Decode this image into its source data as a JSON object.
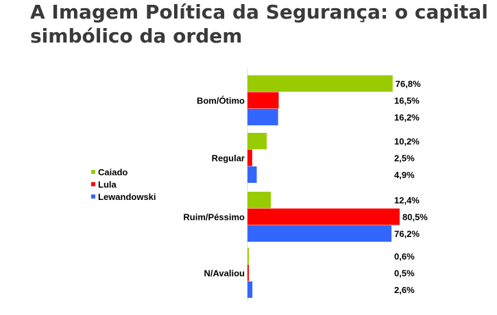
{
  "slide": {
    "title_line1": "A Imagem Política da Segurança: o capital",
    "title_line2": "simbólico da ordem"
  },
  "chart_data": {
    "type": "bar",
    "orientation": "horizontal",
    "categories": [
      "Bom/Ótimo",
      "Regular",
      "Ruim/Péssimo",
      "N/Avaliou"
    ],
    "series": [
      {
        "name": "Caiado",
        "color": "#99cc00",
        "values": [
          76.8,
          10.2,
          12.4,
          0.6
        ],
        "labels": [
          "76,8%",
          "10,2%",
          "12,4%",
          "0,6%"
        ]
      },
      {
        "name": "Lula",
        "color": "#ff0000",
        "values": [
          16.5,
          2.5,
          80.5,
          0.5
        ],
        "labels": [
          "16,5%",
          "2,5%",
          "80,5%",
          "0,5%"
        ]
      },
      {
        "name": "Lewandowski",
        "color": "#3366ff",
        "values": [
          16.2,
          4.9,
          76.2,
          2.6
        ],
        "labels": [
          "16,2%",
          "4,9%",
          "76,2%",
          "2,6%"
        ]
      }
    ],
    "xlim": [
      0,
      80.5
    ],
    "legend_position": "left",
    "grid": false
  }
}
